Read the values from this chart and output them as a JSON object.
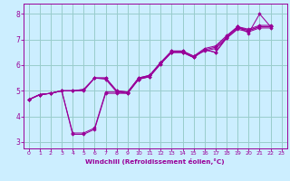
{
  "background_color": "#cceeff",
  "grid_color": "#99cccc",
  "line_color": "#990099",
  "marker_color": "#990099",
  "xlabel": "Windchill (Refroidissement éolien,°C)",
  "xlim": [
    -0.5,
    23.5
  ],
  "ylim": [
    2.75,
    8.4
  ],
  "xticks": [
    0,
    1,
    2,
    3,
    4,
    5,
    6,
    7,
    8,
    9,
    10,
    11,
    12,
    13,
    14,
    15,
    16,
    17,
    18,
    19,
    20,
    21,
    22,
    23
  ],
  "yticks": [
    3,
    4,
    5,
    6,
    7,
    8
  ],
  "series": [
    {
      "x": [
        0,
        1,
        2,
        3,
        4,
        5,
        6,
        7,
        8,
        9,
        10,
        11,
        12,
        13,
        14,
        15,
        16,
        17,
        18,
        19,
        20,
        21,
        22
      ],
      "y": [
        4.65,
        4.85,
        4.9,
        5.0,
        5.0,
        5.0,
        5.5,
        5.45,
        4.95,
        4.9,
        5.45,
        5.55,
        6.05,
        6.5,
        6.5,
        6.3,
        6.6,
        6.7,
        7.1,
        7.5,
        7.35,
        7.5,
        7.5
      ]
    },
    {
      "x": [
        0,
        1,
        2,
        3,
        4,
        5,
        6,
        7,
        8,
        9,
        10,
        11,
        12,
        13,
        14,
        15,
        16,
        17,
        18,
        19,
        20,
        21,
        22
      ],
      "y": [
        4.65,
        4.85,
        4.9,
        5.0,
        5.0,
        5.05,
        5.5,
        5.5,
        5.0,
        4.95,
        5.5,
        5.6,
        6.1,
        6.55,
        6.55,
        6.35,
        6.65,
        6.75,
        7.15,
        7.5,
        7.4,
        7.55,
        7.55
      ]
    },
    {
      "x": [
        0,
        1,
        2,
        3,
        4,
        5,
        6,
        7,
        8,
        9,
        10,
        11,
        12,
        13,
        14,
        15,
        16,
        17,
        18,
        19,
        20,
        21,
        22
      ],
      "y": [
        4.65,
        4.85,
        4.9,
        5.0,
        5.0,
        5.05,
        5.5,
        5.5,
        5.0,
        4.95,
        5.5,
        5.6,
        6.1,
        6.55,
        6.55,
        6.35,
        6.55,
        6.65,
        7.05,
        7.4,
        7.3,
        7.45,
        7.45
      ]
    },
    {
      "x": [
        0,
        1,
        2,
        3,
        4,
        5,
        6,
        7,
        8,
        9,
        10,
        11,
        12,
        13,
        14,
        15,
        16,
        17,
        18,
        19,
        20,
        21,
        22
      ],
      "y": [
        4.65,
        4.85,
        4.9,
        5.0,
        3.3,
        3.3,
        3.5,
        4.9,
        4.9,
        4.9,
        5.45,
        5.55,
        6.05,
        6.5,
        6.5,
        6.3,
        6.6,
        6.5,
        7.1,
        7.5,
        7.25,
        8.0,
        7.5
      ]
    },
    {
      "x": [
        0,
        1,
        2,
        3,
        4,
        5,
        6,
        7,
        8,
        9,
        10,
        11,
        12,
        13,
        14,
        15,
        16,
        17,
        18,
        19,
        20,
        21,
        22
      ],
      "y": [
        4.65,
        4.85,
        4.9,
        5.0,
        3.35,
        3.35,
        3.55,
        4.95,
        4.95,
        4.95,
        5.45,
        5.6,
        6.1,
        6.5,
        6.5,
        6.3,
        6.6,
        6.5,
        7.05,
        7.45,
        7.35,
        7.5,
        7.5
      ]
    }
  ]
}
